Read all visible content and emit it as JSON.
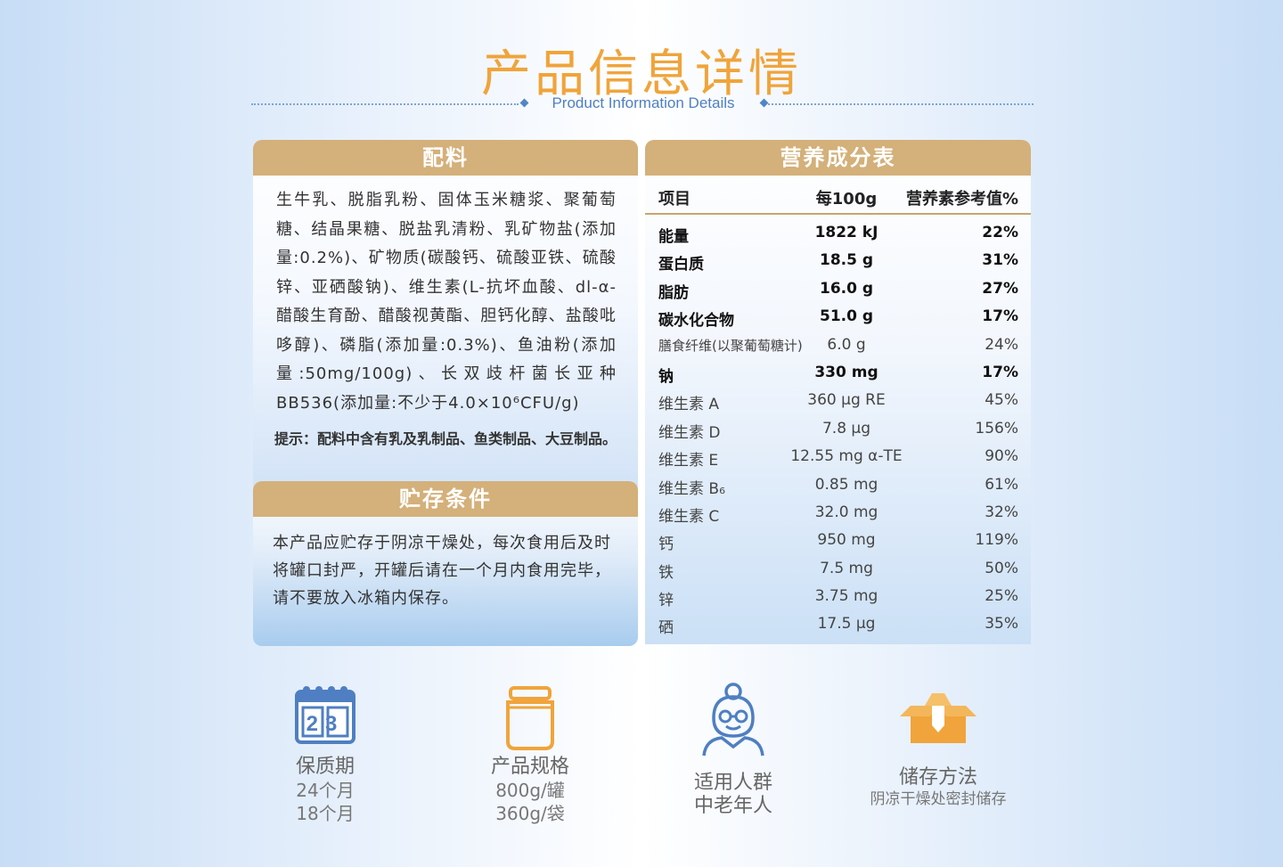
{
  "header": {
    "title": "产品信息详情",
    "subtitle": "Product Information Details"
  },
  "ingredients": {
    "heading": "配料",
    "text": "生牛乳、脱脂乳粉、固体玉米糖浆、聚葡萄糖、结晶果糖、脱盐乳清粉、乳矿物盐(添加量:0.2%)、矿物质(碳酸钙、硫酸亚铁、硫酸锌、亚硒酸钠)、维生素(L-抗坏血酸、dl-α-醋酸生育酚、醋酸视黄酯、胆钙化醇、盐酸吡哆醇)、磷脂(添加量:0.3%)、鱼油粉(添加量:50mg/100g)、长双歧杆菌长亚种BB536(添加量:不少于4.0×10⁶CFU/g)",
    "tip": "提示：配料中含有乳及乳制品、鱼类制品、大豆制品。"
  },
  "storage": {
    "heading": "贮存条件",
    "text": "本产品应贮存于阴凉干燥处，每次食用后及时将罐口封严，开罐后请在一个月内食用完毕，请不要放入冰箱内保存。"
  },
  "nutrition": {
    "heading": "营养成分表",
    "columns": [
      "项目",
      "每100g",
      "营养素参考值%"
    ],
    "rows": [
      {
        "name": "能量",
        "amount": "1822 kJ",
        "nrv": "22%"
      },
      {
        "name": "蛋白质",
        "amount": "18.5 g",
        "nrv": "31%"
      },
      {
        "name": "脂肪",
        "amount": "16.0 g",
        "nrv": "27%"
      },
      {
        "name": "碳水化合物",
        "amount": "51.0 g",
        "nrv": "17%"
      },
      {
        "name": "膳食纤维(以聚葡萄糖计)",
        "amount": "6.0 g",
        "nrv": "24%"
      },
      {
        "name": "钠",
        "amount": "330 mg",
        "nrv": "17%"
      },
      {
        "name": "维生素 A",
        "amount": "360 μg RE",
        "nrv": "45%"
      },
      {
        "name": "维生素 D",
        "amount": "7.8 μg",
        "nrv": "156%"
      },
      {
        "name": "维生素 E",
        "amount": "12.55 mg α-TE",
        "nrv": "90%"
      },
      {
        "name": "维生素 B₆",
        "amount": "0.85 mg",
        "nrv": "61%"
      },
      {
        "name": "维生素 C",
        "amount": "32.0 mg",
        "nrv": "32%"
      },
      {
        "name": "钙",
        "amount": "950 mg",
        "nrv": "119%"
      },
      {
        "name": "铁",
        "amount": "7.5 mg",
        "nrv": "50%"
      },
      {
        "name": "锌",
        "amount": "3.75 mg",
        "nrv": "25%"
      },
      {
        "name": "硒",
        "amount": "17.5 μg",
        "nrv": "35%"
      }
    ]
  },
  "features": {
    "shelf_life": {
      "icon": "calendar-icon",
      "calendar_digits": "23",
      "label": "保质期",
      "line1": "24个月",
      "line2": "18个月"
    },
    "spec": {
      "icon": "can-icon",
      "label": "产品规格",
      "line1": "800g/罐",
      "line2": "360g/袋"
    },
    "audience": {
      "icon": "elderly-person-icon",
      "label": "适用人群",
      "line1": "中老年人"
    },
    "storage": {
      "icon": "box-icon",
      "label": "储存方法",
      "line1": "阴凉干燥处密封储存"
    }
  },
  "colors": {
    "accent_orange": "#f0a43b",
    "panel_gold": "#d4b07a",
    "icon_blue": "#4f7fc2"
  }
}
